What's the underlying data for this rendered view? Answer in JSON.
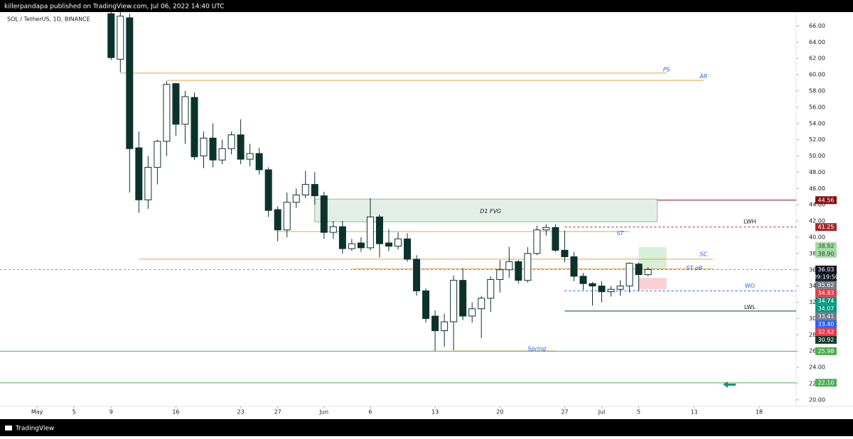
{
  "header": {
    "publisher": "killerpandapa published on TradingView.com, Jul 06, 2022 14:40 UTC",
    "footer": "TradingView"
  },
  "chart_data": {
    "type": "candlestick",
    "title": "SOL / TetherUS, 1D, BINANCE",
    "x": [
      "2022-05-09",
      "2022-05-10",
      "2022-05-11",
      "2022-05-12",
      "2022-05-13",
      "2022-05-14",
      "2022-05-15",
      "2022-05-16",
      "2022-05-17",
      "2022-05-18",
      "2022-05-19",
      "2022-05-20",
      "2022-05-21",
      "2022-05-22",
      "2022-05-23",
      "2022-05-24",
      "2022-05-25",
      "2022-05-26",
      "2022-05-27",
      "2022-05-28",
      "2022-05-29",
      "2022-05-30",
      "2022-05-31",
      "2022-06-01",
      "2022-06-02",
      "2022-06-03",
      "2022-06-04",
      "2022-06-05",
      "2022-06-06",
      "2022-06-07",
      "2022-06-08",
      "2022-06-09",
      "2022-06-10",
      "2022-06-11",
      "2022-06-12",
      "2022-06-13",
      "2022-06-14",
      "2022-06-15",
      "2022-06-16",
      "2022-06-17",
      "2022-06-18",
      "2022-06-19",
      "2022-06-20",
      "2022-06-21",
      "2022-06-22",
      "2022-06-23",
      "2022-06-24",
      "2022-06-25",
      "2022-06-26",
      "2022-06-27",
      "2022-06-28",
      "2022-06-29",
      "2022-06-30",
      "2022-07-01",
      "2022-07-02",
      "2022-07-03",
      "2022-07-04",
      "2022-07-05",
      "2022-07-06"
    ],
    "open": [
      67.5,
      61.9,
      67,
      51,
      44.6,
      48.6,
      51.8,
      58.9,
      53.9,
      57.2,
      50,
      52.2,
      49.5,
      50.9,
      52.6,
      49.6,
      50.3,
      48.3,
      43.4,
      40.9,
      44.3,
      45.2,
      46.5,
      45.1,
      40.6,
      41.3,
      38.6,
      39.3,
      38.7,
      42.5,
      39.3,
      38.9,
      39.8,
      37.3,
      33.4,
      30.3,
      28.5,
      29.6,
      34.7,
      30.3,
      31.2,
      32.5,
      34.8,
      36,
      37,
      34.7,
      38,
      40.9,
      41.2,
      38.4,
      37.6,
      35.2,
      34.3,
      34,
      33.3,
      33.6,
      34,
      36.7,
      35.4
    ],
    "high": [
      70,
      68,
      67.5,
      53,
      50,
      52,
      59.2,
      59,
      58,
      57.8,
      53,
      54,
      52,
      53,
      54.5,
      51.5,
      51,
      48.6,
      43.8,
      45.5,
      46,
      48.2,
      48,
      45.6,
      42,
      42,
      39.8,
      40,
      44.8,
      42.8,
      41,
      40.6,
      40.5,
      37.8,
      33.7,
      31,
      30.6,
      35.3,
      36.2,
      32,
      32.8,
      35.2,
      37.2,
      38.8,
      37.2,
      38.8,
      41.4,
      41.6,
      41.6,
      40.8,
      38.2,
      35.6,
      34.5,
      34.6,
      34,
      34.7,
      36.9,
      36.9,
      36.3
    ],
    "low": [
      61.8,
      60.3,
      45.5,
      43,
      43.5,
      46.5,
      50,
      52.5,
      51.5,
      49.5,
      48.5,
      48.6,
      49,
      50.2,
      49,
      48.7,
      47.7,
      42.5,
      39.5,
      40,
      43.6,
      44.8,
      44,
      39.8,
      39.8,
      38,
      38.3,
      38.2,
      38.4,
      37.5,
      38.3,
      38.5,
      37,
      32.8,
      29.5,
      26,
      26.5,
      26.1,
      29.8,
      29.5,
      27.6,
      30.8,
      33.2,
      35,
      34.3,
      34.4,
      37.8,
      40.2,
      38.2,
      36.9,
      34.6,
      33.5,
      31.6,
      32,
      32.7,
      32.8,
      33.2,
      33.4,
      35.2
    ],
    "close": [
      62.1,
      67.2,
      50.9,
      44.6,
      48.6,
      51.8,
      58.8,
      53.9,
      57.3,
      49.9,
      52.2,
      49.5,
      50.9,
      52.6,
      49.6,
      50.3,
      48.3,
      43.3,
      40.9,
      44.3,
      45.2,
      46.5,
      45.1,
      40.6,
      41.3,
      38.6,
      39.2,
      38.7,
      42.5,
      39.2,
      38.9,
      39.8,
      37.3,
      33.4,
      30,
      28.5,
      29.6,
      34.7,
      30.3,
      31.2,
      32.5,
      34.8,
      36,
      37,
      34.7,
      38,
      40.9,
      41.2,
      38.4,
      37.6,
      35.2,
      34.3,
      34,
      33.3,
      33.6,
      34,
      36.8,
      35.4,
      36.03
    ],
    "up_color": "#ffffff",
    "down_color": "#0b332c",
    "outline_color": "#0b332c",
    "ylim": [
      19.2,
      67.7
    ],
    "yticks": [
      {
        "value": 20,
        "label": "20.00"
      },
      {
        "value": 22,
        "label": "22.00"
      },
      {
        "value": 24,
        "label": "24.00"
      },
      {
        "value": 26,
        "label": "26.00"
      },
      {
        "value": 28,
        "label": "28.00"
      },
      {
        "value": 30,
        "label": "30.00"
      },
      {
        "value": 32,
        "label": "32.00"
      },
      {
        "value": 34,
        "label": "34.00"
      },
      {
        "value": 36,
        "label": "36.00"
      },
      {
        "value": 38,
        "label": "38.00"
      },
      {
        "value": 40,
        "label": "40.00"
      },
      {
        "value": 42,
        "label": "42.00"
      },
      {
        "value": 44,
        "label": "44.00"
      },
      {
        "value": 46,
        "label": "46.00"
      },
      {
        "value": 48,
        "label": "48.00"
      },
      {
        "value": 50,
        "label": "50.00"
      },
      {
        "value": 52,
        "label": "52.00"
      },
      {
        "value": 54,
        "label": "54.00"
      },
      {
        "value": 56,
        "label": "56.00"
      },
      {
        "value": 58,
        "label": "58.00"
      },
      {
        "value": 60,
        "label": "60.00"
      },
      {
        "value": 62,
        "label": "62.00"
      },
      {
        "value": 64,
        "label": "64.00"
      },
      {
        "value": 66,
        "label": "66.00"
      }
    ],
    "xlim": [
      "2022-04-27",
      "2022-07-22"
    ],
    "xticks": [
      {
        "value": "2022-05-01",
        "label": "May"
      },
      {
        "value": "2022-05-05",
        "label": "5"
      },
      {
        "value": "2022-05-09",
        "label": "9"
      },
      {
        "value": "2022-05-16",
        "label": "16"
      },
      {
        "value": "2022-05-23",
        "label": "23"
      },
      {
        "value": "2022-05-27",
        "label": "27"
      },
      {
        "value": "2022-06-01",
        "label": "Jun"
      },
      {
        "value": "2022-06-06",
        "label": "6"
      },
      {
        "value": "2022-06-13",
        "label": "13"
      },
      {
        "value": "2022-06-20",
        "label": "20"
      },
      {
        "value": "2022-06-27",
        "label": "27"
      },
      {
        "value": "2022-07-01",
        "label": "Jul"
      },
      {
        "value": "2022-07-05",
        "label": "5"
      },
      {
        "value": "2022-07-11",
        "label": "11"
      },
      {
        "value": "2022-07-18",
        "label": "18"
      }
    ],
    "levels": [
      {
        "value": 44.56,
        "label": "44.56",
        "color": "#880e0e",
        "from": "2022-07-07",
        "dash": false
      },
      {
        "value": 41.25,
        "label": "41.25",
        "color": "#a52a2a",
        "from": "2022-06-27",
        "dash": true
      },
      {
        "value": 38.92,
        "label": "38.92",
        "color": "#a5d6a7"
      },
      {
        "value": 38.9,
        "label": "38.90",
        "color": "#a5d6a7"
      },
      {
        "value": 36.03,
        "label": "36.03",
        "color": "#131722",
        "countdown": "09:19:50",
        "from": "2022-04-27",
        "dash": true
      },
      {
        "value": 35.62,
        "label": "35.62",
        "color": "#787b86"
      },
      {
        "value": 34.83,
        "label": "34.83",
        "color": "#f23645"
      },
      {
        "value": 34.74,
        "label": "34.74",
        "color": "#089981"
      },
      {
        "value": 34.07,
        "label": "34.07",
        "color": "#089981"
      },
      {
        "value": 33.41,
        "label": "33.41",
        "color": "#787b86"
      },
      {
        "value": 33.4,
        "label": "33.40",
        "color": "#2962ff",
        "from": "2022-06-27",
        "dash": true
      },
      {
        "value": 32.62,
        "label": "32.62",
        "color": "#f23645"
      },
      {
        "value": 30.92,
        "label": "30.92",
        "color": "#0f3d2e",
        "from": "2022-06-27",
        "dash": false
      },
      {
        "value": 25.98,
        "label": "25.98",
        "color": "#4caf50",
        "from": "2022-04-27",
        "dash": false
      },
      {
        "value": 22.1,
        "label": "22.10",
        "color": "#4caf50",
        "from": "2022-04-27",
        "dash": false
      }
    ],
    "drawings": [
      {
        "value": 60.2,
        "from": "2022-05-10",
        "to": "2022-07-08",
        "color": "#e8a04a"
      },
      {
        "value": 59.3,
        "from": "2022-05-15",
        "to": "2022-07-12",
        "color": "#e8a04a"
      },
      {
        "value": 40.7,
        "from": "2022-05-27",
        "to": "2022-07-04",
        "color": "#e8a04a"
      },
      {
        "value": 37.3,
        "from": "2022-05-12",
        "to": "2022-07-13",
        "color": "#e8a04a"
      },
      {
        "value": 36.1,
        "from": "2022-06-04",
        "to": "2022-07-13",
        "color": "#e8a04a"
      },
      {
        "value": 26.0,
        "from": "2022-06-15",
        "to": "2022-06-26",
        "color": "#e8a04a"
      }
    ],
    "zones": [
      {
        "top": 44.7,
        "bottom": 41.9,
        "from": "2022-05-31",
        "to": "2022-07-07",
        "color": "#e3efe6",
        "stroke": "#9bb8a2"
      },
      {
        "top": 38.8,
        "bottom": 36.0,
        "from": "2022-07-05",
        "to": "2022-07-08",
        "color": "#d6efd8",
        "stroke": "none"
      },
      {
        "top": 35.0,
        "bottom": 33.6,
        "from": "2022-07-05",
        "to": "2022-07-08",
        "color": "#f8d0d4",
        "stroke": "none"
      }
    ],
    "annotations": [
      {
        "text": "PS",
        "x": "2022-07-08",
        "y": 60.6,
        "color": "#2962ff",
        "italic": true
      },
      {
        "text": "AR",
        "x": "2022-07-12",
        "y": 59.8,
        "color": "#2962ff",
        "italic": true
      },
      {
        "text": "D1 FVG",
        "x": "2022-06-19",
        "y": 43.2,
        "color": "#131722",
        "italic": true
      },
      {
        "text": "ST",
        "x": "2022-07-03",
        "y": 40.5,
        "color": "#2962ff",
        "italic": true
      },
      {
        "text": "SC",
        "x": "2022-07-12",
        "y": 37.9,
        "color": "#2962ff",
        "italic": true
      },
      {
        "text": "ST pB",
        "x": "2022-07-11",
        "y": 36.2,
        "color": "#2962ff",
        "italic": true
      },
      {
        "text": "LWH",
        "x": "2022-07-17",
        "y": 41.9,
        "color": "#131722",
        "italic": false
      },
      {
        "text": "WO",
        "x": "2022-07-17",
        "y": 34.0,
        "color": "#2962ff",
        "italic": false
      },
      {
        "text": "LWL",
        "x": "2022-07-17",
        "y": 31.4,
        "color": "#131722",
        "italic": false
      },
      {
        "text": "Spring",
        "x": "2022-06-24",
        "y": 26.3,
        "color": "#2962ff",
        "italic": true
      }
    ]
  }
}
